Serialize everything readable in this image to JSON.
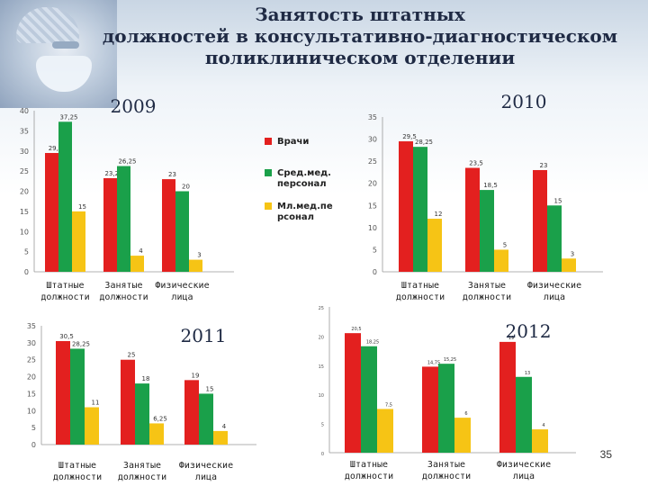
{
  "slide": {
    "title_lines": [
      "Занятость штатных",
      "должностей в консультативно-диагностическом",
      "поликлиническом отделении"
    ],
    "page_number": "35"
  },
  "colors": {
    "red": "#e3201f",
    "green": "#1aa04a",
    "yellow": "#f6c415"
  },
  "chart_data": [
    {
      "type": "bar",
      "title": "2009",
      "categories": [
        "Штатные должности",
        "Занятые должности",
        "Физические лица"
      ],
      "series": [
        {
          "name": "Врачи",
          "values": [
            29.5,
            23.25,
            23
          ]
        },
        {
          "name": "Сред.мед. персонал",
          "values": [
            37.25,
            26.25,
            20
          ]
        },
        {
          "name": "Мл.мед.персонал",
          "values": [
            15,
            4,
            3
          ]
        }
      ],
      "value_labels": [
        [
          "29,5",
          "23,25",
          "23"
        ],
        [
          "37,25",
          "26,25",
          "20"
        ],
        [
          "15",
          "4",
          "3"
        ]
      ],
      "ylim": [
        0,
        40
      ],
      "yticks": [
        "0",
        "5",
        "10",
        "15",
        "20",
        "25",
        "30",
        "35",
        "40"
      ],
      "legend": "right"
    },
    {
      "type": "bar",
      "title": "2010",
      "categories": [
        "Штатные должности",
        "Занятые должности",
        "Физические лица"
      ],
      "series": [
        {
          "name": "Врачи",
          "values": [
            29.5,
            23.5,
            23
          ]
        },
        {
          "name": "Сред.мед. персонал",
          "values": [
            28.25,
            18.5,
            15
          ]
        },
        {
          "name": "Мл.мед.персонал",
          "values": [
            12,
            5,
            3
          ]
        }
      ],
      "value_labels": [
        [
          "29,5",
          "23,5",
          "23"
        ],
        [
          "28,25",
          "18,5",
          "15"
        ],
        [
          "12",
          "5",
          "3"
        ]
      ],
      "ylim": [
        0,
        35
      ],
      "yticks": [
        "0",
        "5",
        "10",
        "15",
        "20",
        "25",
        "30",
        "35"
      ]
    },
    {
      "type": "bar",
      "title": "2011",
      "categories": [
        "Штатные должности",
        "Занятые должности",
        "Физические лица"
      ],
      "series": [
        {
          "name": "Врачи",
          "values": [
            30.5,
            25,
            19
          ]
        },
        {
          "name": "Сред.мед. персонал",
          "values": [
            28.25,
            18,
            15
          ]
        },
        {
          "name": "Мл.мед.персонал",
          "values": [
            11,
            6.25,
            4
          ]
        }
      ],
      "value_labels": [
        [
          "30,5",
          "25",
          "19"
        ],
        [
          "28,25",
          "18",
          "15"
        ],
        [
          "11",
          "6,25",
          "4"
        ]
      ],
      "ylim": [
        0,
        35
      ],
      "yticks": [
        "0",
        "5",
        "10",
        "15",
        "20",
        "25",
        "30",
        "35"
      ]
    },
    {
      "type": "bar",
      "title": "2012",
      "categories": [
        "Штатные должности",
        "Занятые должности",
        "Физические лица"
      ],
      "series": [
        {
          "name": "Врачи",
          "values": [
            20.5,
            14.75,
            19
          ]
        },
        {
          "name": "Сред.мед. персонал",
          "values": [
            18.25,
            15.25,
            13
          ]
        },
        {
          "name": "Мл.мед.персонал",
          "values": [
            7.5,
            6,
            4
          ]
        }
      ],
      "value_labels": [
        [
          "20,5",
          "14,75",
          "19"
        ],
        [
          "18,25",
          "15,25",
          "13"
        ],
        [
          "7,5",
          "6",
          "4"
        ]
      ],
      "ylim": [
        0,
        25
      ],
      "yticks": [
        "0",
        "5",
        "10",
        "15",
        "20",
        "25"
      ]
    }
  ],
  "legend_labels": {
    "doctors": [
      "Врачи"
    ],
    "nurses": [
      "Сред.мед.",
      "персонал"
    ],
    "junior": [
      "Мл.мед.пе",
      "рсонал"
    ]
  },
  "category_label_lines": [
    [
      "Штатные",
      "должности"
    ],
    [
      "Занятые",
      "должности"
    ],
    [
      "Физические",
      "лица"
    ]
  ]
}
